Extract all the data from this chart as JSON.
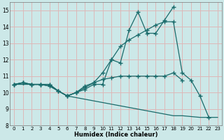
{
  "xlabel": "Humidex (Indice chaleur)",
  "bg_color": "#cce8e8",
  "grid_color": "#ddb8b8",
  "line_color": "#1a6b6b",
  "xlim": [
    -0.5,
    23.5
  ],
  "ylim": [
    8,
    15.5
  ],
  "yticks": [
    8,
    9,
    10,
    11,
    12,
    13,
    14,
    15
  ],
  "xticks": [
    0,
    1,
    2,
    3,
    4,
    5,
    6,
    7,
    8,
    9,
    10,
    11,
    12,
    13,
    14,
    15,
    16,
    17,
    18,
    19,
    20,
    21,
    22,
    23
  ],
  "line_zigzag_x": [
    0,
    1,
    2,
    3,
    4,
    5,
    6,
    7,
    8,
    9,
    10,
    11,
    12,
    13,
    14,
    15,
    16,
    17,
    18
  ],
  "line_zigzag_y": [
    10.5,
    10.6,
    10.5,
    10.5,
    10.5,
    10.1,
    9.8,
    10.0,
    10.2,
    10.5,
    10.5,
    12.0,
    11.8,
    13.8,
    14.9,
    13.6,
    13.6,
    14.4,
    15.2
  ],
  "line_smooth_x": [
    0,
    1,
    2,
    3,
    4,
    5,
    6,
    7,
    8,
    9,
    10,
    11,
    12,
    13,
    14,
    15,
    16,
    17,
    18,
    19,
    20,
    21,
    22
  ],
  "line_smooth_y": [
    10.5,
    10.6,
    10.5,
    10.5,
    10.4,
    10.1,
    9.8,
    10.0,
    10.3,
    10.6,
    11.2,
    12.0,
    12.8,
    13.2,
    13.5,
    13.8,
    14.1,
    14.3,
    14.3,
    11.2,
    10.75,
    9.8,
    8.5
  ],
  "line_flat_x": [
    0,
    1,
    2,
    3,
    4,
    5,
    6,
    7,
    8,
    9,
    10,
    11,
    12,
    13,
    14,
    15,
    16,
    17,
    18,
    19,
    20
  ],
  "line_flat_y": [
    10.5,
    10.6,
    10.5,
    10.5,
    10.5,
    10.1,
    9.8,
    10.0,
    10.4,
    10.6,
    10.8,
    10.9,
    11.0,
    11.0,
    11.0,
    11.0,
    11.0,
    11.0,
    11.2,
    10.75,
    null
  ],
  "line_decline_x": [
    0,
    1,
    2,
    3,
    4,
    5,
    6,
    7,
    8,
    9,
    10,
    11,
    12,
    13,
    14,
    15,
    16,
    17,
    18,
    19,
    20,
    21,
    22,
    23
  ],
  "line_decline_y": [
    10.5,
    10.5,
    10.5,
    10.5,
    10.4,
    10.1,
    9.8,
    9.7,
    9.6,
    9.5,
    9.4,
    9.3,
    9.2,
    9.1,
    9.0,
    8.9,
    8.8,
    8.7,
    8.6,
    8.6,
    8.55,
    8.5,
    8.5,
    8.5
  ],
  "marker_size": 2.5,
  "linewidth": 0.9
}
